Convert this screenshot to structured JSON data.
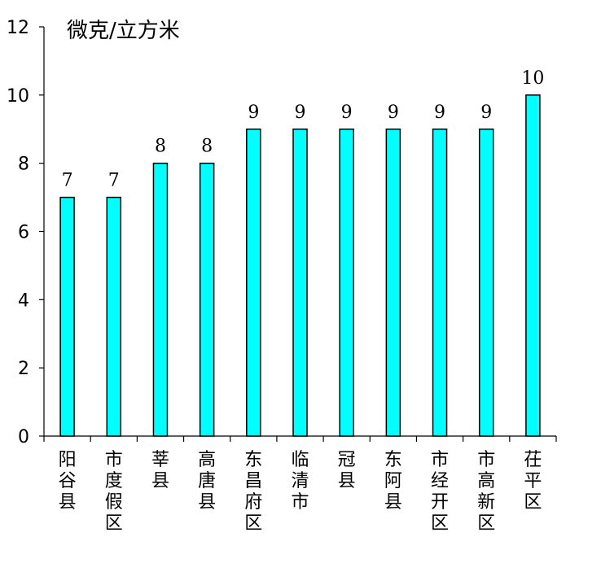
{
  "chart_data": {
    "type": "bar",
    "title": "",
    "unit_label": "微克/立方米",
    "xlabel": "",
    "ylabel": "",
    "ylim": [
      0,
      12
    ],
    "yticks": [
      0,
      2,
      4,
      6,
      8,
      10,
      12
    ],
    "grid": false,
    "categories": [
      "阳谷县",
      "市度假区",
      "莘县",
      "高唐县",
      "东昌府区",
      "临清市",
      "冠县",
      "东阿县",
      "市经开区",
      "市高新区",
      "茌平区"
    ],
    "values": [
      7,
      7,
      8,
      8,
      9,
      9,
      9,
      9,
      9,
      9,
      10
    ],
    "bar_color": "#00FFFF",
    "bar_edge_color": "#000000"
  }
}
